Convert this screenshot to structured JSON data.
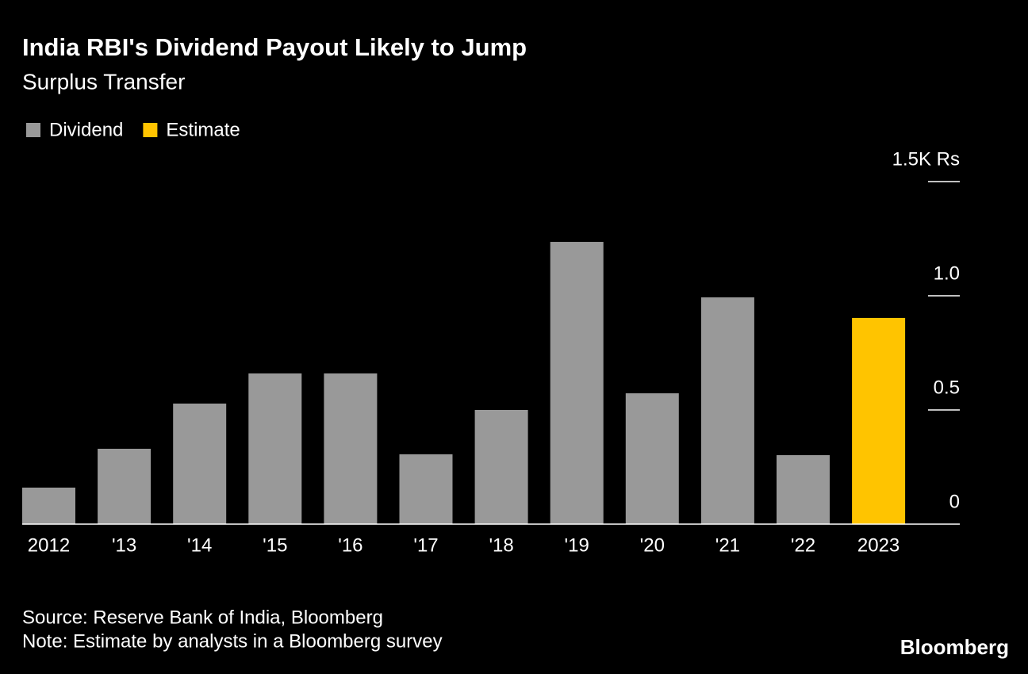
{
  "chart_data": {
    "type": "bar",
    "title": "India RBI's Dividend Payout Likely to Jump",
    "subtitle": "Surplus Transfer",
    "categories": [
      "2012",
      "'13",
      "'14",
      "'15",
      "'16",
      "'17",
      "'18",
      "'19",
      "'20",
      "'21",
      "'22",
      "2023"
    ],
    "series": [
      {
        "name": "Dividend",
        "color": "#999999",
        "values": [
          0.16,
          0.33,
          0.528,
          0.66,
          0.66,
          0.306,
          0.5,
          1.236,
          0.573,
          0.993,
          0.302,
          null
        ]
      },
      {
        "name": "Estimate",
        "color": "#ffc400",
        "values": [
          null,
          null,
          null,
          null,
          null,
          null,
          null,
          null,
          null,
          null,
          null,
          0.903
        ]
      }
    ],
    "ylim": [
      0,
      1.5
    ],
    "yticks": [
      0,
      0.5,
      {
        "value": 1,
        "label": "1.0"
      },
      {
        "value": 1.5,
        "label": "1.5K Rs"
      }
    ],
    "source": "Source: Reserve Bank of India, Bloomberg",
    "note": "Note: Estimate by analysts in a Bloomberg survey",
    "brand": "Bloomberg"
  }
}
